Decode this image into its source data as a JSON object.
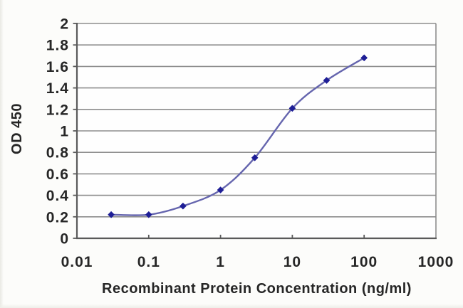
{
  "chart_data": {
    "type": "line",
    "title": "",
    "xlabel": "Recombinant Protein Concentration (ng/ml)",
    "ylabel": "OD 450",
    "x_scale": "log",
    "x": [
      0.03,
      0.1,
      0.3,
      1,
      3,
      10,
      30,
      100
    ],
    "y": [
      0.22,
      0.22,
      0.3,
      0.45,
      0.75,
      1.21,
      1.47,
      1.68
    ],
    "xlim": [
      0.01,
      1000
    ],
    "ylim": [
      0,
      2
    ],
    "x_ticks": [
      0.01,
      0.1,
      1,
      10,
      100,
      1000
    ],
    "x_tick_labels": [
      "0.01",
      "0.1",
      "1",
      "10",
      "100",
      "1000"
    ],
    "y_ticks": [
      0,
      0.2,
      0.4,
      0.6,
      0.8,
      1,
      1.2,
      1.4,
      1.6,
      1.8,
      2
    ],
    "y_tick_labels": [
      "0",
      "0.2",
      "0.4",
      "0.6",
      "0.8",
      "1",
      "1.2",
      "1.4",
      "1.6",
      "1.8",
      "2"
    ],
    "grid": "horizontal",
    "legend": "none",
    "marker": "diamond",
    "line_style": "smooth",
    "colors": {
      "line": "#6565ae",
      "marker": "#1e1e96",
      "grid": "#8d8d8d",
      "axis": "#5a5a5a",
      "text": "#262626",
      "plot_background": "#fefefe",
      "background": "#fcfcfa"
    }
  }
}
